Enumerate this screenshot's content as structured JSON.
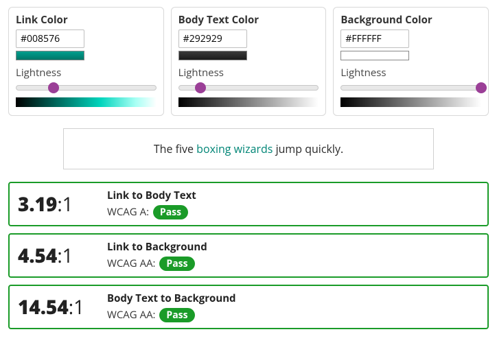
{
  "accent_color": "#9b3f97",
  "pickers": [
    {
      "title": "Link Color",
      "hex": "#008576",
      "swatch_gradient": "linear-gradient(to bottom, #009f8e, #007668)",
      "slider_pos_pct": 27,
      "gradient": "linear-gradient(to right, #000000, #006b5f 30%, #00d4bc 60%, #a6fff4 85%, #ffffff)"
    },
    {
      "title": "Body Text Color",
      "hex": "#292929",
      "swatch_gradient": "linear-gradient(to bottom, #3a3a3a, #1a1a1a)",
      "slider_pos_pct": 16,
      "gradient": "linear-gradient(to right, #000000, #808080 50%, #ffffff)"
    },
    {
      "title": "Background Color",
      "hex": "#FFFFFF",
      "swatch_gradient": "#ffffff",
      "slider_pos_pct": 100,
      "gradient": "linear-gradient(to right, #000000, #808080 50%, #ffffff)"
    }
  ],
  "lightness_label": "Lightness",
  "preview": {
    "before": "The five ",
    "link": "boxing wizards",
    "after": " jump quickly.",
    "link_color": "#008576",
    "body_color": "#292929",
    "bg_color": "#FFFFFF"
  },
  "results": [
    {
      "ratio": "3.19",
      "suffix": ":1",
      "title": "Link to Body Text",
      "level_prefix": "WCAG A: ",
      "badge_text": "Pass",
      "badge_color": "#1a9b28",
      "border_color": "#1a9b28"
    },
    {
      "ratio": "4.54",
      "suffix": ":1",
      "title": "Link to Background",
      "level_prefix": "WCAG AA: ",
      "badge_text": "Pass",
      "badge_color": "#1a9b28",
      "border_color": "#1a9b28"
    },
    {
      "ratio": "14.54",
      "suffix": ":1",
      "title": "Body Text to Background",
      "level_prefix": "WCAG AA: ",
      "badge_text": "Pass",
      "badge_color": "#1a9b28",
      "border_color": "#1a9b28"
    }
  ]
}
